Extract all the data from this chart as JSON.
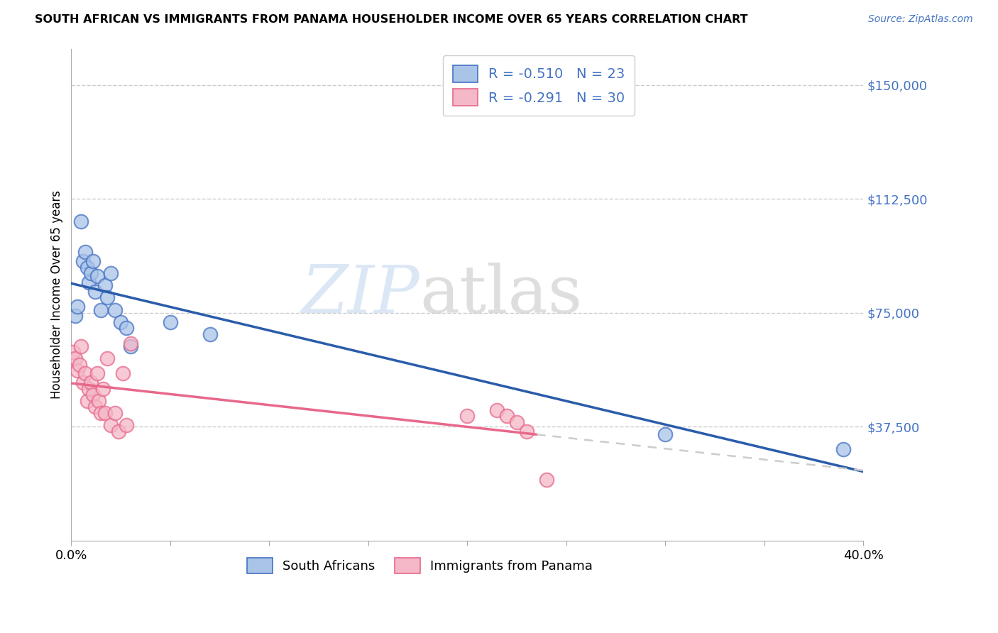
{
  "title": "SOUTH AFRICAN VS IMMIGRANTS FROM PANAMA HOUSEHOLDER INCOME OVER 65 YEARS CORRELATION CHART",
  "source": "Source: ZipAtlas.com",
  "ylabel": "Householder Income Over 65 years",
  "xlim": [
    0.0,
    0.4
  ],
  "ylim": [
    0,
    162000
  ],
  "yticks": [
    37500,
    75000,
    112500,
    150000
  ],
  "ytick_labels": [
    "$37,500",
    "$75,000",
    "$112,500",
    "$150,000"
  ],
  "xlabel_ticks": [
    0.0,
    0.4
  ],
  "xlabel_labels": [
    "0.0%",
    "40.0%"
  ],
  "blue_label": "South Africans",
  "pink_label": "Immigrants from Panama",
  "blue_R": "-0.510",
  "blue_N": "23",
  "pink_R": "-0.291",
  "pink_N": "30",
  "blue_fill": "#aac4e8",
  "blue_edge": "#4472c4",
  "blue_line": "#2a5caa",
  "pink_fill": "#f4b8c8",
  "pink_edge": "#e8688a",
  "pink_line": "#e8688a",
  "dash_color": "#cccccc",
  "grid_color": "#cccccc",
  "background": "#ffffff",
  "right_axis_color": "#4472c4",
  "legend_text_color": "#4472c4",
  "blue_x": [
    0.002,
    0.003,
    0.005,
    0.006,
    0.007,
    0.008,
    0.009,
    0.01,
    0.011,
    0.012,
    0.013,
    0.015,
    0.017,
    0.018,
    0.02,
    0.022,
    0.025,
    0.028,
    0.03,
    0.05,
    0.07,
    0.3,
    0.39
  ],
  "blue_y": [
    74000,
    77000,
    105000,
    92000,
    95000,
    90000,
    85000,
    88000,
    92000,
    82000,
    87000,
    76000,
    84000,
    80000,
    88000,
    76000,
    72000,
    70000,
    64000,
    72000,
    68000,
    35000,
    30000
  ],
  "pink_x": [
    0.001,
    0.002,
    0.003,
    0.004,
    0.005,
    0.006,
    0.007,
    0.008,
    0.009,
    0.01,
    0.011,
    0.012,
    0.013,
    0.014,
    0.015,
    0.016,
    0.017,
    0.018,
    0.02,
    0.022,
    0.024,
    0.026,
    0.028,
    0.03,
    0.2,
    0.215,
    0.22,
    0.225,
    0.23,
    0.24
  ],
  "pink_y": [
    62000,
    60000,
    56000,
    58000,
    64000,
    52000,
    55000,
    46000,
    50000,
    52000,
    48000,
    44000,
    55000,
    46000,
    42000,
    50000,
    42000,
    60000,
    38000,
    42000,
    36000,
    55000,
    38000,
    65000,
    41000,
    43000,
    41000,
    39000,
    36000,
    20000
  ],
  "watermark_zip": "ZIP",
  "watermark_atlas": "atlas"
}
